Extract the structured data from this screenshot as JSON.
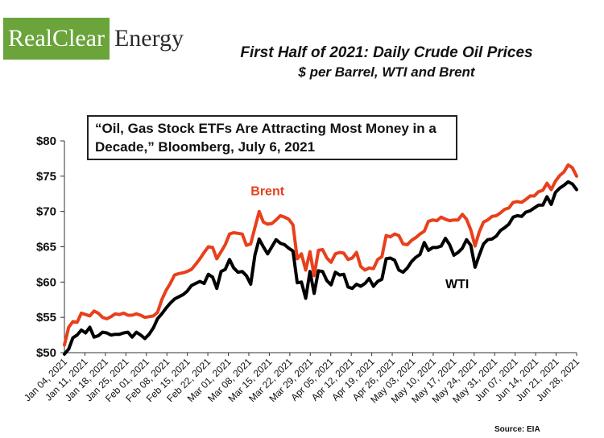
{
  "logo": {
    "part1": "RealClear",
    "part2": "Energy"
  },
  "quote": "“Oil, Gas Stock ETFs Are Attracting Most Money in a Decade,” Bloomberg, July 6, 2021",
  "source": "Source: EIA",
  "chart_data": {
    "type": "line",
    "title": "First Half of 2021: Daily Crude Oil Prices",
    "subtitle": "$ per Barrel, WTI and Brent",
    "ylim": [
      50,
      80
    ],
    "yticks": [
      50,
      55,
      60,
      65,
      70,
      75,
      80
    ],
    "ytick_labels": [
      "$50",
      "$55",
      "$60",
      "$65",
      "$70",
      "$75",
      "$80"
    ],
    "xtick_labels": [
      "Jan 04, 2021",
      "Jan 11, 2021",
      "Jan 18, 2021",
      "Jan 25, 2021",
      "Feb 01, 2021",
      "Feb 08, 2021",
      "Feb 15, 2021",
      "Feb 22, 2021",
      "Mar 01, 2021",
      "Mar 08, 2021",
      "Mar 15, 2021",
      "Mar 22, 2021",
      "Mar 29, 2021",
      "Apr 05, 2021",
      "Apr 12, 2021",
      "Apr 19, 2021",
      "Apr 26, 2021",
      "May 03, 2021",
      "May 10, 2021",
      "May 17, 2021",
      "May 24, 2021",
      "May 31, 2021",
      "Jun 07, 2021",
      "Jun 14, 2021",
      "Jun 21, 2021",
      "Jun 28, 2021"
    ],
    "legend": "inline labels",
    "grid": false,
    "series": [
      {
        "name": "Brent",
        "color": "#e8401c",
        "values": [
          [
            0,
            51.1
          ],
          [
            1,
            53.6
          ],
          [
            2,
            54.4
          ],
          [
            3,
            54.3
          ],
          [
            4,
            55.6
          ],
          [
            5,
            55.4
          ],
          [
            6,
            55.2
          ],
          [
            7,
            55.9
          ],
          [
            8,
            55.6
          ],
          [
            9,
            55.0
          ],
          [
            10,
            54.8
          ],
          [
            11,
            55.1
          ],
          [
            12,
            55.5
          ],
          [
            13,
            55.4
          ],
          [
            14,
            55.6
          ],
          [
            15,
            55.3
          ],
          [
            16,
            55.3
          ],
          [
            17,
            55.5
          ],
          [
            18,
            55.3
          ],
          [
            19,
            55.0
          ],
          [
            20,
            55.1
          ],
          [
            21,
            55.2
          ],
          [
            22,
            55.7
          ],
          [
            23,
            57.5
          ],
          [
            24,
            58.8
          ],
          [
            25,
            59.8
          ],
          [
            26,
            61.0
          ],
          [
            27,
            61.2
          ],
          [
            28,
            61.3
          ],
          [
            29,
            61.5
          ],
          [
            30,
            61.8
          ],
          [
            31,
            62.5
          ],
          [
            32,
            63.3
          ],
          [
            33,
            64.2
          ],
          [
            34,
            65.0
          ],
          [
            35,
            64.9
          ],
          [
            36,
            63.3
          ],
          [
            37,
            64.3
          ],
          [
            38,
            65.3
          ],
          [
            39,
            66.8
          ],
          [
            40,
            67.0
          ],
          [
            41,
            66.9
          ],
          [
            42,
            66.8
          ],
          [
            43,
            65.2
          ],
          [
            44,
            65.4
          ],
          [
            45,
            67.7
          ],
          [
            46,
            70.0
          ],
          [
            47,
            68.5
          ],
          [
            48,
            68.2
          ],
          [
            49,
            68.3
          ],
          [
            50,
            68.8
          ],
          [
            51,
            69.4
          ],
          [
            52,
            69.2
          ],
          [
            53,
            68.9
          ],
          [
            54,
            68.1
          ],
          [
            55,
            63.3
          ],
          [
            56,
            64.0
          ],
          [
            57,
            61.7
          ],
          [
            58,
            64.3
          ],
          [
            59,
            60.9
          ],
          [
            60,
            64.5
          ],
          [
            61,
            64.6
          ],
          [
            62,
            63.4
          ],
          [
            63,
            62.8
          ],
          [
            64,
            64.0
          ],
          [
            65,
            64.2
          ],
          [
            66,
            64.1
          ],
          [
            67,
            63.2
          ],
          [
            68,
            63.4
          ],
          [
            69,
            64.2
          ],
          [
            70,
            62.2
          ],
          [
            71,
            61.7
          ],
          [
            72,
            62.0
          ],
          [
            73,
            61.9
          ],
          [
            74,
            63.2
          ],
          [
            75,
            63.6
          ],
          [
            76,
            66.6
          ],
          [
            77,
            66.4
          ],
          [
            78,
            66.8
          ],
          [
            79,
            66.6
          ],
          [
            80,
            65.4
          ],
          [
            81,
            65.3
          ],
          [
            82,
            65.9
          ],
          [
            83,
            66.3
          ],
          [
            84,
            66.8
          ],
          [
            85,
            67.2
          ],
          [
            86,
            68.6
          ],
          [
            87,
            68.8
          ],
          [
            88,
            68.7
          ],
          [
            89,
            69.2
          ],
          [
            90,
            68.9
          ],
          [
            91,
            68.7
          ],
          [
            92,
            68.8
          ],
          [
            93,
            68.8
          ],
          [
            94,
            69.6
          ],
          [
            95,
            68.9
          ],
          [
            96,
            67.4
          ],
          [
            97,
            65.1
          ],
          [
            98,
            67.1
          ],
          [
            99,
            68.5
          ],
          [
            100,
            68.8
          ],
          [
            101,
            69.3
          ],
          [
            102,
            69.4
          ],
          [
            103,
            69.8
          ],
          [
            104,
            70.3
          ],
          [
            105,
            70.5
          ],
          [
            106,
            71.3
          ],
          [
            107,
            71.4
          ],
          [
            108,
            71.3
          ],
          [
            109,
            71.7
          ],
          [
            110,
            72.2
          ],
          [
            111,
            72.2
          ],
          [
            112,
            72.8
          ],
          [
            113,
            73.0
          ],
          [
            114,
            74.0
          ],
          [
            115,
            73.1
          ],
          [
            116,
            74.3
          ],
          [
            117,
            75.1
          ],
          [
            118,
            75.6
          ],
          [
            119,
            76.6
          ],
          [
            120,
            76.2
          ],
          [
            121,
            75.0
          ]
        ]
      },
      {
        "name": "WTI",
        "color": "#000000",
        "values": [
          [
            0,
            49.8
          ],
          [
            1,
            50.5
          ],
          [
            2,
            52.1
          ],
          [
            3,
            52.5
          ],
          [
            4,
            53.2
          ],
          [
            5,
            52.8
          ],
          [
            6,
            53.6
          ],
          [
            7,
            52.2
          ],
          [
            8,
            52.4
          ],
          [
            9,
            52.9
          ],
          [
            10,
            52.8
          ],
          [
            11,
            52.5
          ],
          [
            12,
            52.6
          ],
          [
            13,
            52.6
          ],
          [
            14,
            52.8
          ],
          [
            15,
            52.9
          ],
          [
            16,
            52.2
          ],
          [
            17,
            52.9
          ],
          [
            18,
            52.5
          ],
          [
            19,
            52.0
          ],
          [
            20,
            52.6
          ],
          [
            21,
            53.5
          ],
          [
            22,
            54.8
          ],
          [
            23,
            55.5
          ],
          [
            24,
            56.3
          ],
          [
            25,
            57.0
          ],
          [
            26,
            57.6
          ],
          [
            27,
            57.9
          ],
          [
            28,
            58.2
          ],
          [
            29,
            58.7
          ],
          [
            30,
            59.5
          ],
          [
            31,
            59.8
          ],
          [
            32,
            60.1
          ],
          [
            33,
            59.8
          ],
          [
            34,
            61.1
          ],
          [
            35,
            60.7
          ],
          [
            36,
            59.1
          ],
          [
            37,
            61.5
          ],
          [
            38,
            61.8
          ],
          [
            39,
            63.2
          ],
          [
            40,
            62.0
          ],
          [
            41,
            61.4
          ],
          [
            42,
            61.5
          ],
          [
            43,
            60.9
          ],
          [
            44,
            59.7
          ],
          [
            45,
            63.8
          ],
          [
            46,
            66.1
          ],
          [
            47,
            65.0
          ],
          [
            48,
            64.0
          ],
          [
            49,
            65.0
          ],
          [
            50,
            66.0
          ],
          [
            51,
            65.5
          ],
          [
            52,
            65.3
          ],
          [
            53,
            64.8
          ],
          [
            54,
            64.4
          ],
          [
            55,
            59.9
          ],
          [
            56,
            60.0
          ],
          [
            57,
            57.7
          ],
          [
            58,
            61.5
          ],
          [
            59,
            58.4
          ],
          [
            60,
            61.6
          ],
          [
            61,
            61.5
          ],
          [
            62,
            60.2
          ],
          [
            63,
            59.6
          ],
          [
            64,
            61.4
          ],
          [
            65,
            61.0
          ],
          [
            66,
            61.1
          ],
          [
            67,
            59.3
          ],
          [
            68,
            59.1
          ],
          [
            69,
            59.7
          ],
          [
            70,
            59.4
          ],
          [
            71,
            59.8
          ],
          [
            72,
            60.5
          ],
          [
            73,
            59.4
          ],
          [
            74,
            60.1
          ],
          [
            75,
            60.4
          ],
          [
            76,
            63.3
          ],
          [
            77,
            63.4
          ],
          [
            78,
            63.1
          ],
          [
            79,
            61.7
          ],
          [
            80,
            61.4
          ],
          [
            81,
            62.0
          ],
          [
            82,
            62.9
          ],
          [
            83,
            63.5
          ],
          [
            84,
            63.9
          ],
          [
            85,
            65.6
          ],
          [
            86,
            64.5
          ],
          [
            87,
            64.9
          ],
          [
            88,
            64.9
          ],
          [
            89,
            65.1
          ],
          [
            90,
            66.2
          ],
          [
            91,
            65.3
          ],
          [
            92,
            63.8
          ],
          [
            93,
            64.2
          ],
          [
            94,
            64.8
          ],
          [
            95,
            66.0
          ],
          [
            96,
            65.2
          ],
          [
            97,
            62.1
          ],
          [
            98,
            63.8
          ],
          [
            99,
            65.4
          ],
          [
            100,
            66.0
          ],
          [
            101,
            66.1
          ],
          [
            102,
            66.5
          ],
          [
            103,
            67.3
          ],
          [
            104,
            67.7
          ],
          [
            105,
            68.2
          ],
          [
            106,
            69.2
          ],
          [
            107,
            69.4
          ],
          [
            108,
            69.3
          ],
          [
            109,
            69.9
          ],
          [
            110,
            70.1
          ],
          [
            111,
            70.5
          ],
          [
            112,
            70.9
          ],
          [
            113,
            70.9
          ],
          [
            114,
            72.1
          ],
          [
            115,
            71.0
          ],
          [
            116,
            72.7
          ],
          [
            117,
            73.3
          ],
          [
            118,
            73.7
          ],
          [
            119,
            74.2
          ],
          [
            120,
            73.9
          ],
          [
            121,
            73.1
          ]
        ]
      }
    ]
  }
}
